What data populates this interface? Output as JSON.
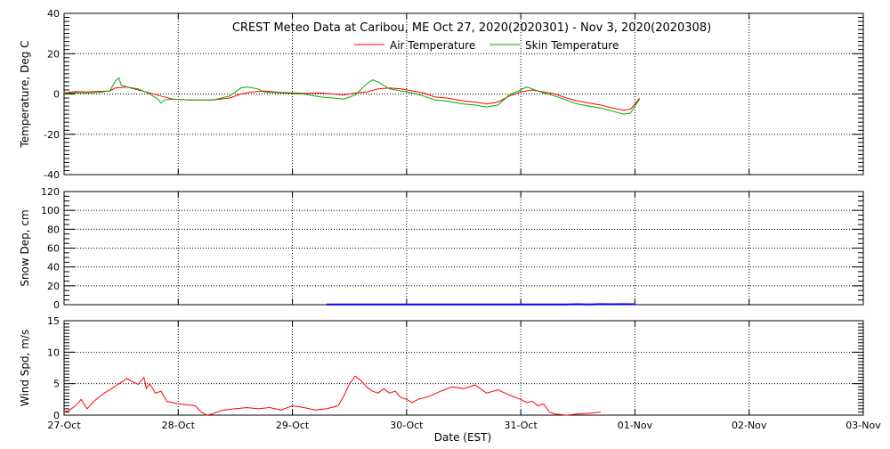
{
  "chart_data": [
    {
      "type": "line",
      "title": "CREST Meteo Data at Caribou, ME   Oct 27, 2020(2020301) - Nov  3, 2020(2020308)",
      "ylabel": "Temperature, Deg C",
      "ylim": [
        -40,
        40
      ],
      "yticks": [
        "40",
        "20",
        "0",
        "-20",
        "-40"
      ],
      "xlim": [
        "27-Oct",
        "03-Nov"
      ],
      "grid": true,
      "legend_position": "top-center",
      "series": [
        {
          "name": "Air Temperature",
          "color": "#ff0000",
          "points": [
            [
              0.0,
              0.5
            ],
            [
              0.1,
              1.2
            ],
            [
              0.2,
              1.0
            ],
            [
              0.3,
              1.3
            ],
            [
              0.4,
              1.5
            ],
            [
              0.45,
              3.0
            ],
            [
              0.55,
              3.5
            ],
            [
              0.65,
              2.0
            ],
            [
              0.75,
              0.5
            ],
            [
              0.85,
              -1.0
            ],
            [
              0.95,
              -2.5
            ],
            [
              1.1,
              -3.0
            ],
            [
              1.3,
              -3.0
            ],
            [
              1.45,
              -2.0
            ],
            [
              1.55,
              0.0
            ],
            [
              1.65,
              1.0
            ],
            [
              1.75,
              1.5
            ],
            [
              1.9,
              0.8
            ],
            [
              2.1,
              0.3
            ],
            [
              2.25,
              0.5
            ],
            [
              2.35,
              0.0
            ],
            [
              2.45,
              -0.5
            ],
            [
              2.55,
              0.5
            ],
            [
              2.65,
              1.0
            ],
            [
              2.75,
              2.5
            ],
            [
              2.85,
              3.0
            ],
            [
              2.95,
              2.5
            ],
            [
              3.05,
              1.5
            ],
            [
              3.15,
              0.5
            ],
            [
              3.25,
              -1.5
            ],
            [
              3.35,
              -2.0
            ],
            [
              3.45,
              -3.0
            ],
            [
              3.5,
              -3.5
            ],
            [
              3.6,
              -4.0
            ],
            [
              3.7,
              -5.0
            ],
            [
              3.8,
              -4.0
            ],
            [
              3.9,
              -1.0
            ],
            [
              4.0,
              1.0
            ],
            [
              4.1,
              2.0
            ],
            [
              4.2,
              1.0
            ],
            [
              4.3,
              0.0
            ],
            [
              4.4,
              -2.0
            ],
            [
              4.5,
              -3.5
            ],
            [
              4.6,
              -4.5
            ],
            [
              4.7,
              -5.5
            ],
            [
              4.8,
              -7.0
            ],
            [
              4.9,
              -8.0
            ],
            [
              4.96,
              -7.5
            ],
            [
              5.0,
              -5.0
            ],
            [
              5.04,
              -2.0
            ]
          ]
        },
        {
          "name": "Skin Temperature",
          "color": "#00aa00",
          "points": [
            [
              0.0,
              0.2
            ],
            [
              0.1,
              0.6
            ],
            [
              0.2,
              0.5
            ],
            [
              0.3,
              0.8
            ],
            [
              0.4,
              1.5
            ],
            [
              0.45,
              6.5
            ],
            [
              0.48,
              8.0
            ],
            [
              0.5,
              4.5
            ],
            [
              0.55,
              3.5
            ],
            [
              0.65,
              2.5
            ],
            [
              0.75,
              0.0
            ],
            [
              0.82,
              -2.5
            ],
            [
              0.85,
              -4.5
            ],
            [
              0.88,
              -3.0
            ],
            [
              0.95,
              -2.5
            ],
            [
              1.1,
              -3.0
            ],
            [
              1.3,
              -3.0
            ],
            [
              1.45,
              -1.0
            ],
            [
              1.55,
              3.0
            ],
            [
              1.6,
              3.5
            ],
            [
              1.7,
              2.5
            ],
            [
              1.75,
              1.0
            ],
            [
              1.9,
              0.5
            ],
            [
              2.1,
              0.0
            ],
            [
              2.25,
              -1.5
            ],
            [
              2.35,
              -2.0
            ],
            [
              2.45,
              -2.5
            ],
            [
              2.55,
              -0.5
            ],
            [
              2.65,
              5.0
            ],
            [
              2.7,
              7.0
            ],
            [
              2.75,
              6.0
            ],
            [
              2.85,
              2.5
            ],
            [
              2.95,
              1.5
            ],
            [
              3.05,
              0.5
            ],
            [
              3.15,
              -1.0
            ],
            [
              3.25,
              -3.0
            ],
            [
              3.35,
              -3.5
            ],
            [
              3.45,
              -4.5
            ],
            [
              3.5,
              -5.0
            ],
            [
              3.6,
              -5.5
            ],
            [
              3.7,
              -6.5
            ],
            [
              3.8,
              -5.5
            ],
            [
              3.9,
              -0.5
            ],
            [
              4.0,
              2.0
            ],
            [
              4.05,
              3.5
            ],
            [
              4.1,
              2.5
            ],
            [
              4.2,
              0.5
            ],
            [
              4.3,
              -1.0
            ],
            [
              4.4,
              -3.0
            ],
            [
              4.5,
              -5.0
            ],
            [
              4.6,
              -6.0
            ],
            [
              4.7,
              -7.0
            ],
            [
              4.8,
              -8.5
            ],
            [
              4.9,
              -10.0
            ],
            [
              4.96,
              -9.5
            ],
            [
              5.0,
              -6.0
            ],
            [
              5.04,
              -2.5
            ]
          ]
        }
      ]
    },
    {
      "type": "line",
      "ylabel": "Snow Dep, cm",
      "ylim": [
        0,
        120
      ],
      "yticks": [
        "120",
        "100",
        "80",
        "60",
        "40",
        "20",
        "0"
      ],
      "xlim": [
        "27-Oct",
        "03-Nov"
      ],
      "grid": true,
      "series": [
        {
          "color": "#0000ff",
          "points": [
            [
              2.3,
              0.2
            ],
            [
              2.4,
              0.2
            ],
            [
              3.3,
              0.3
            ],
            [
              3.4,
              0.2
            ],
            [
              4.1,
              0.3
            ],
            [
              4.2,
              0.2
            ],
            [
              4.3,
              0.3
            ],
            [
              4.4,
              0.2
            ],
            [
              4.5,
              0.5
            ],
            [
              4.6,
              0.3
            ],
            [
              4.7,
              0.6
            ],
            [
              4.8,
              0.5
            ],
            [
              4.9,
              0.6
            ],
            [
              5.0,
              0.5
            ]
          ]
        }
      ]
    },
    {
      "type": "line",
      "ylabel": "Wind Spd, m/s",
      "ylim": [
        0,
        15
      ],
      "yticks": [
        "15",
        "10",
        "5",
        "0"
      ],
      "xlim": [
        "27-Oct",
        "03-Nov"
      ],
      "xlabel": "Date (EST)",
      "xticks": [
        "27-Oct",
        "28-Oct",
        "29-Oct",
        "30-Oct",
        "31-Oct",
        "01-Nov",
        "02-Nov",
        "03-Nov"
      ],
      "grid": true,
      "series": [
        {
          "color": "#ff0000",
          "points": [
            [
              0.0,
              0.5
            ],
            [
              0.05,
              0.8
            ],
            [
              0.1,
              1.5
            ],
            [
              0.15,
              2.5
            ],
            [
              0.2,
              1.0
            ],
            [
              0.25,
              2.0
            ],
            [
              0.3,
              2.8
            ],
            [
              0.35,
              3.5
            ],
            [
              0.4,
              4.0
            ],
            [
              0.45,
              4.6
            ],
            [
              0.5,
              5.2
            ],
            [
              0.55,
              5.8
            ],
            [
              0.6,
              5.3
            ],
            [
              0.65,
              4.9
            ],
            [
              0.7,
              6.0
            ],
            [
              0.72,
              4.2
            ],
            [
              0.75,
              5.0
            ],
            [
              0.8,
              3.5
            ],
            [
              0.85,
              3.8
            ],
            [
              0.9,
              2.2
            ],
            [
              1.0,
              1.8
            ],
            [
              1.1,
              1.6
            ],
            [
              1.15,
              1.5
            ],
            [
              1.2,
              0.5
            ],
            [
              1.25,
              -0.2
            ],
            [
              1.3,
              0.2
            ],
            [
              1.35,
              0.6
            ],
            [
              1.4,
              0.8
            ],
            [
              1.5,
              1.0
            ],
            [
              1.6,
              1.2
            ],
            [
              1.7,
              1.0
            ],
            [
              1.8,
              1.2
            ],
            [
              1.9,
              0.8
            ],
            [
              2.0,
              1.5
            ],
            [
              2.1,
              1.2
            ],
            [
              2.2,
              0.8
            ],
            [
              2.3,
              1.0
            ],
            [
              2.4,
              1.5
            ],
            [
              2.45,
              3.0
            ],
            [
              2.5,
              5.0
            ],
            [
              2.55,
              6.2
            ],
            [
              2.6,
              5.5
            ],
            [
              2.65,
              4.5
            ],
            [
              2.7,
              3.8
            ],
            [
              2.75,
              3.5
            ],
            [
              2.8,
              4.2
            ],
            [
              2.85,
              3.5
            ],
            [
              2.9,
              3.8
            ],
            [
              2.95,
              2.8
            ],
            [
              3.0,
              2.5
            ],
            [
              3.05,
              2.0
            ],
            [
              3.1,
              2.5
            ],
            [
              3.2,
              3.0
            ],
            [
              3.3,
              3.8
            ],
            [
              3.4,
              4.5
            ],
            [
              3.5,
              4.2
            ],
            [
              3.6,
              4.8
            ],
            [
              3.7,
              3.5
            ],
            [
              3.8,
              4.0
            ],
            [
              3.9,
              3.2
            ],
            [
              4.0,
              2.5
            ],
            [
              4.05,
              2.0
            ],
            [
              4.1,
              2.2
            ],
            [
              4.15,
              1.5
            ],
            [
              4.2,
              1.8
            ],
            [
              4.25,
              0.5
            ],
            [
              4.3,
              0.2
            ],
            [
              4.4,
              0.0
            ],
            [
              4.5,
              0.2
            ],
            [
              4.6,
              0.3
            ],
            [
              4.7,
              0.5
            ]
          ]
        }
      ]
    }
  ]
}
